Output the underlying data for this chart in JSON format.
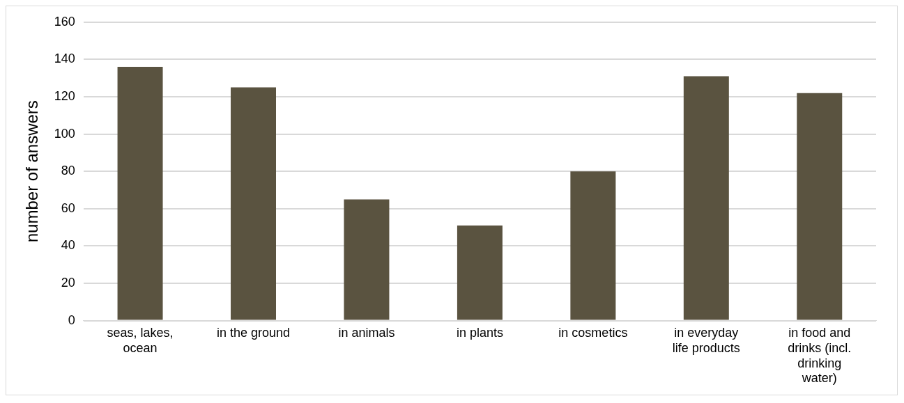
{
  "chart_data": {
    "type": "bar",
    "ylabel": "number of answers",
    "categories": [
      "seas, lakes, ocean",
      "in the ground",
      "in animals",
      "in plants",
      "in cosmetics",
      "in everyday life products",
      "in food and drinks (incl. drinking water)"
    ],
    "values": [
      136,
      125,
      65,
      51,
      80,
      131,
      122
    ],
    "color": "#5a5340",
    "ylim": [
      0,
      160
    ],
    "yticks": [
      0,
      20,
      40,
      60,
      80,
      100,
      120,
      140,
      160
    ],
    "grid": "y",
    "legend": false
  }
}
